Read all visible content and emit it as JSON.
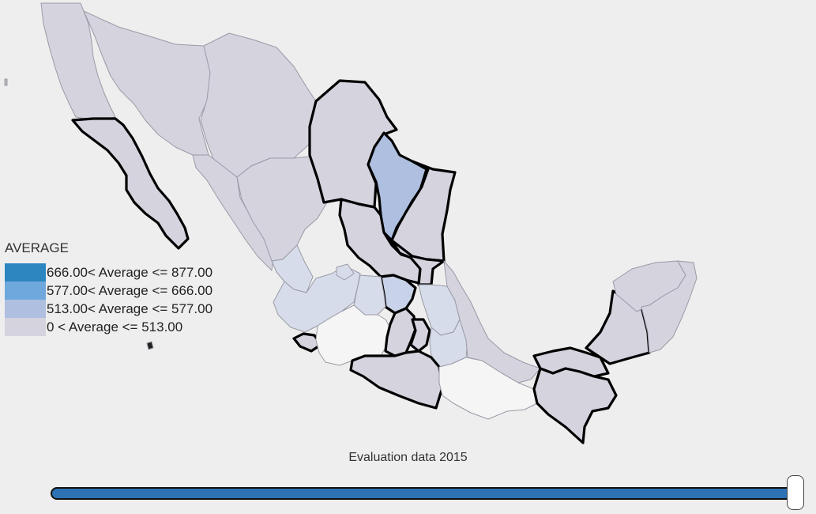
{
  "legend": {
    "title": "AVERAGE",
    "items": [
      {
        "label": "666.00< Average <= 877.00",
        "color": "#2e86c1"
      },
      {
        "label": "577.00< Average <= 666.00",
        "color": "#6fa8dc"
      },
      {
        "label": "513.00< Average <= 577.00",
        "color": "#aebfe0"
      },
      {
        "label": "0 < Average <= 513.00",
        "color": "#d4d3de"
      }
    ]
  },
  "colors": {
    "background": "#eeeeee",
    "low": "#d4d3de",
    "mid": "#c8d2e8",
    "light": "#d6dce9",
    "blue": "#aebfe0",
    "nodata": "#f5f5f5",
    "highlight_border": "#000000"
  },
  "slider": {
    "title": "Evaluation data 2015",
    "value": 1.0
  }
}
